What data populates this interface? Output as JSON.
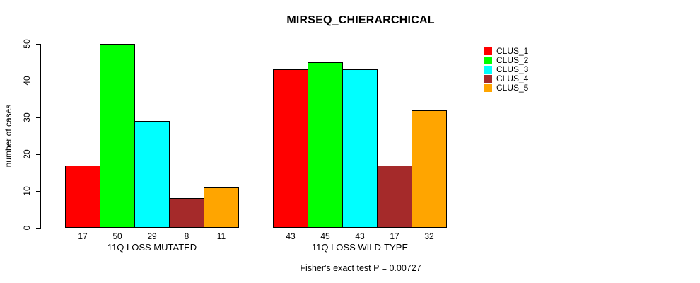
{
  "header": {
    "title": "MIRSEQ_CHIERARCHICAL"
  },
  "footer": {
    "annotation": "Fisher's exact test P = 0.00727"
  },
  "y_axis": {
    "label": "number of cases"
  },
  "chart_data": {
    "type": "bar",
    "title": "MIRSEQ_CHIERARCHICAL",
    "xlabel": "",
    "ylabel": "number of cases",
    "ylim": [
      0,
      50
    ],
    "y_ticks": [
      0,
      10,
      20,
      30,
      40,
      50
    ],
    "grid": false,
    "legend_position": "right",
    "series_names": [
      "CLUS_1",
      "CLUS_2",
      "CLUS_3",
      "CLUS_4",
      "CLUS_5"
    ],
    "series_colors": [
      "#FF0000",
      "#00FF00",
      "#00FFFF",
      "#A52A2A",
      "#FFA500"
    ],
    "groups": [
      {
        "label": "11Q LOSS MUTATED",
        "values": [
          17,
          50,
          29,
          8,
          11
        ]
      },
      {
        "label": "11Q LOSS WILD-TYPE",
        "values": [
          43,
          45,
          43,
          17,
          32
        ]
      }
    ],
    "bar_value_labels": [
      [
        17,
        50,
        29,
        8,
        11
      ],
      [
        43,
        45,
        43,
        17,
        32
      ]
    ],
    "annotation": "Fisher's exact test P = 0.00727"
  }
}
